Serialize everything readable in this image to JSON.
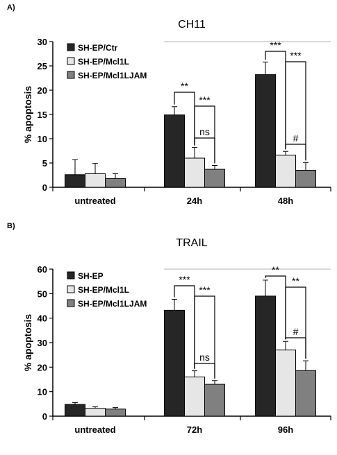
{
  "figure": {
    "panel_a_label": "A)",
    "panel_b_label": "B)"
  },
  "chart_data": [
    {
      "type": "bar",
      "title": "CH11",
      "xlabel": "",
      "ylabel": "% apoptosis",
      "ylim": [
        0,
        30
      ],
      "yticks": [
        0,
        5,
        10,
        15,
        20,
        25,
        30
      ],
      "categories": [
        "untreated",
        "24h",
        "48h"
      ],
      "grid": false,
      "legend_position": "top-left",
      "colors": [
        "#262626",
        "#e6e6e6",
        "#808080"
      ],
      "series": [
        {
          "name": "SH-EP/Ctr",
          "values": [
            2.6,
            14.9,
            23.2
          ],
          "errors": [
            3.1,
            1.7,
            2.6
          ]
        },
        {
          "name": "SH-EP/Mcl1L",
          "values": [
            2.8,
            6.0,
            6.6
          ],
          "errors": [
            2.1,
            2.2,
            0.8
          ]
        },
        {
          "name": "SH-EP/Mcl1LJAM",
          "values": [
            1.8,
            3.7,
            3.5
          ],
          "errors": [
            1.0,
            0.8,
            1.6
          ]
        }
      ],
      "annotations": [
        {
          "text": "**",
          "category": "24h",
          "from_series": 0,
          "to_series": 1
        },
        {
          "text": "***",
          "category": "24h",
          "from_series": 1,
          "to_series": 2
        },
        {
          "text": "ns",
          "category": "24h",
          "from_series": 1,
          "to_series": 2
        },
        {
          "text": "***",
          "category": "48h",
          "from_series": 0,
          "to_series": 1
        },
        {
          "text": "***",
          "category": "48h",
          "from_series": 1,
          "to_series": 2
        },
        {
          "text": "#",
          "category": "48h",
          "from_series": 1,
          "to_series": 2
        }
      ]
    },
    {
      "type": "bar",
      "title": "TRAIL",
      "xlabel": "",
      "ylabel": "% apoptosis",
      "ylim": [
        0,
        60
      ],
      "yticks": [
        0,
        10,
        20,
        30,
        40,
        50,
        60
      ],
      "categories": [
        "untreated",
        "72h",
        "96h"
      ],
      "grid": false,
      "legend_position": "top-left",
      "colors": [
        "#262626",
        "#e6e6e6",
        "#808080"
      ],
      "series": [
        {
          "name": "SH-EP",
          "values": [
            4.8,
            43.2,
            49.0
          ],
          "errors": [
            0.7,
            4.5,
            6.5
          ]
        },
        {
          "name": "SH-EP/Mcl1L",
          "values": [
            3.2,
            16.0,
            27.0
          ],
          "errors": [
            0.6,
            2.5,
            3.5
          ]
        },
        {
          "name": "SH-EP/Mcl1LJAM",
          "values": [
            2.9,
            13.0,
            18.6
          ],
          "errors": [
            0.6,
            1.5,
            4.0
          ]
        }
      ],
      "annotations": [
        {
          "text": "***",
          "category": "72h",
          "from_series": 0,
          "to_series": 1
        },
        {
          "text": "***",
          "category": "72h",
          "from_series": 1,
          "to_series": 2
        },
        {
          "text": "ns",
          "category": "72h",
          "from_series": 1,
          "to_series": 2
        },
        {
          "text": "**",
          "category": "96h",
          "from_series": 0,
          "to_series": 1
        },
        {
          "text": "**",
          "category": "96h",
          "from_series": 1,
          "to_series": 2
        },
        {
          "text": "#",
          "category": "96h",
          "from_series": 1,
          "to_series": 2
        }
      ]
    }
  ]
}
